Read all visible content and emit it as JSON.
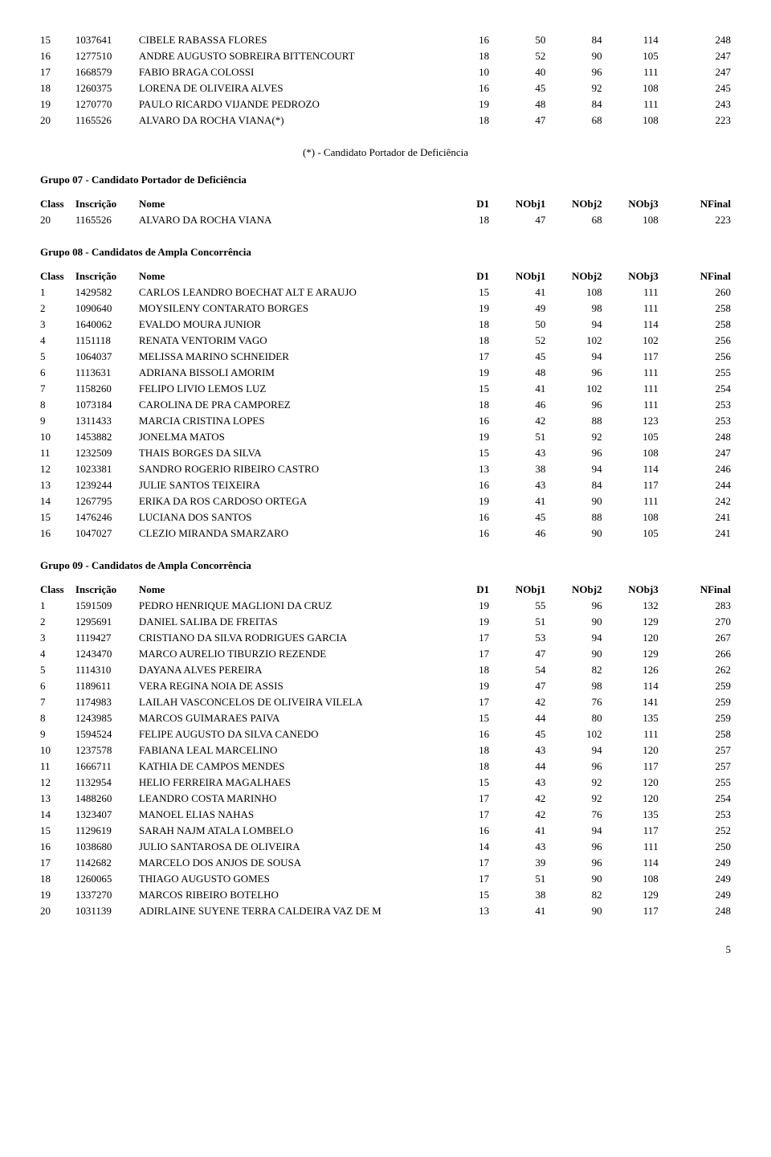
{
  "headers": {
    "class": "Class",
    "inscricao": "Inscrição",
    "nome": "Nome",
    "d1": "D1",
    "nobj1": "NObj1",
    "nobj2": "NObj2",
    "nobj3": "NObj3",
    "nfinal": "NFinal"
  },
  "note": "(*) - Candidato Portador de Deficiência",
  "page_number": "5",
  "top_rows": [
    {
      "c": "15",
      "i": "1037641",
      "n": "CIBELE RABASSA FLORES",
      "d1": "16",
      "o1": "50",
      "o2": "84",
      "o3": "114",
      "f": "248"
    },
    {
      "c": "16",
      "i": "1277510",
      "n": "ANDRE AUGUSTO SOBREIRA BITTENCOURT",
      "d1": "18",
      "o1": "52",
      "o2": "90",
      "o3": "105",
      "f": "247"
    },
    {
      "c": "17",
      "i": "1668579",
      "n": "FABIO BRAGA COLOSSI",
      "d1": "10",
      "o1": "40",
      "o2": "96",
      "o3": "111",
      "f": "247"
    },
    {
      "c": "18",
      "i": "1260375",
      "n": "LORENA DE OLIVEIRA ALVES",
      "d1": "16",
      "o1": "45",
      "o2": "92",
      "o3": "108",
      "f": "245"
    },
    {
      "c": "19",
      "i": "1270770",
      "n": "PAULO RICARDO VIJANDE PEDROZO",
      "d1": "19",
      "o1": "48",
      "o2": "84",
      "o3": "111",
      "f": "243"
    },
    {
      "c": "20",
      "i": "1165526",
      "n": "ALVARO DA ROCHA VIANA(*)",
      "d1": "18",
      "o1": "47",
      "o2": "68",
      "o3": "108",
      "f": "223"
    }
  ],
  "group07": {
    "title": "Grupo 07 - Candidato Portador de Deficiência",
    "rows": [
      {
        "c": "20",
        "i": "1165526",
        "n": "ALVARO DA ROCHA VIANA",
        "d1": "18",
        "o1": "47",
        "o2": "68",
        "o3": "108",
        "f": "223"
      }
    ]
  },
  "group08": {
    "title": "Grupo 08 - Candidatos de Ampla Concorrência",
    "rows": [
      {
        "c": "1",
        "i": "1429582",
        "n": "CARLOS LEANDRO BOECHAT ALT E ARAUJO",
        "d1": "15",
        "o1": "41",
        "o2": "108",
        "o3": "111",
        "f": "260"
      },
      {
        "c": "2",
        "i": "1090640",
        "n": "MOYSILENY CONTARATO BORGES",
        "d1": "19",
        "o1": "49",
        "o2": "98",
        "o3": "111",
        "f": "258"
      },
      {
        "c": "3",
        "i": "1640062",
        "n": "EVALDO MOURA JUNIOR",
        "d1": "18",
        "o1": "50",
        "o2": "94",
        "o3": "114",
        "f": "258"
      },
      {
        "c": "4",
        "i": "1151118",
        "n": "RENATA VENTORIM VAGO",
        "d1": "18",
        "o1": "52",
        "o2": "102",
        "o3": "102",
        "f": "256"
      },
      {
        "c": "5",
        "i": "1064037",
        "n": "MELISSA MARINO SCHNEIDER",
        "d1": "17",
        "o1": "45",
        "o2": "94",
        "o3": "117",
        "f": "256"
      },
      {
        "c": "6",
        "i": "1113631",
        "n": "ADRIANA BISSOLI AMORIM",
        "d1": "19",
        "o1": "48",
        "o2": "96",
        "o3": "111",
        "f": "255"
      },
      {
        "c": "7",
        "i": "1158260",
        "n": "FELIPO LIVIO LEMOS LUZ",
        "d1": "15",
        "o1": "41",
        "o2": "102",
        "o3": "111",
        "f": "254"
      },
      {
        "c": "8",
        "i": "1073184",
        "n": "CAROLINA DE PRA CAMPOREZ",
        "d1": "18",
        "o1": "46",
        "o2": "96",
        "o3": "111",
        "f": "253"
      },
      {
        "c": "9",
        "i": "1311433",
        "n": "MARCIA CRISTINA LOPES",
        "d1": "16",
        "o1": "42",
        "o2": "88",
        "o3": "123",
        "f": "253"
      },
      {
        "c": "10",
        "i": "1453882",
        "n": "JONELMA MATOS",
        "d1": "19",
        "o1": "51",
        "o2": "92",
        "o3": "105",
        "f": "248"
      },
      {
        "c": "11",
        "i": "1232509",
        "n": "THAIS BORGES DA SILVA",
        "d1": "15",
        "o1": "43",
        "o2": "96",
        "o3": "108",
        "f": "247"
      },
      {
        "c": "12",
        "i": "1023381",
        "n": "SANDRO ROGERIO RIBEIRO CASTRO",
        "d1": "13",
        "o1": "38",
        "o2": "94",
        "o3": "114",
        "f": "246"
      },
      {
        "c": "13",
        "i": "1239244",
        "n": "JULIE SANTOS TEIXEIRA",
        "d1": "16",
        "o1": "43",
        "o2": "84",
        "o3": "117",
        "f": "244"
      },
      {
        "c": "14",
        "i": "1267795",
        "n": "ERIKA DA ROS CARDOSO ORTEGA",
        "d1": "19",
        "o1": "41",
        "o2": "90",
        "o3": "111",
        "f": "242"
      },
      {
        "c": "15",
        "i": "1476246",
        "n": "LUCIANA DOS SANTOS",
        "d1": "16",
        "o1": "45",
        "o2": "88",
        "o3": "108",
        "f": "241"
      },
      {
        "c": "16",
        "i": "1047027",
        "n": "CLEZIO MIRANDA SMARZARO",
        "d1": "16",
        "o1": "46",
        "o2": "90",
        "o3": "105",
        "f": "241"
      }
    ]
  },
  "group09": {
    "title": "Grupo 09 - Candidatos de Ampla Concorrência",
    "rows": [
      {
        "c": "1",
        "i": "1591509",
        "n": "PEDRO HENRIQUE MAGLIONI DA CRUZ",
        "d1": "19",
        "o1": "55",
        "o2": "96",
        "o3": "132",
        "f": "283"
      },
      {
        "c": "2",
        "i": "1295691",
        "n": "DANIEL SALIBA DE FREITAS",
        "d1": "19",
        "o1": "51",
        "o2": "90",
        "o3": "129",
        "f": "270"
      },
      {
        "c": "3",
        "i": "1119427",
        "n": "CRISTIANO DA SILVA RODRIGUES GARCIA",
        "d1": "17",
        "o1": "53",
        "o2": "94",
        "o3": "120",
        "f": "267"
      },
      {
        "c": "4",
        "i": "1243470",
        "n": "MARCO AURELIO TIBURZIO REZENDE",
        "d1": "17",
        "o1": "47",
        "o2": "90",
        "o3": "129",
        "f": "266"
      },
      {
        "c": "5",
        "i": "1114310",
        "n": "DAYANA ALVES PEREIRA",
        "d1": "18",
        "o1": "54",
        "o2": "82",
        "o3": "126",
        "f": "262"
      },
      {
        "c": "6",
        "i": "1189611",
        "n": "VERA REGINA NOIA DE ASSIS",
        "d1": "19",
        "o1": "47",
        "o2": "98",
        "o3": "114",
        "f": "259"
      },
      {
        "c": "7",
        "i": "1174983",
        "n": "LAILAH VASCONCELOS DE OLIVEIRA VILELA",
        "d1": "17",
        "o1": "42",
        "o2": "76",
        "o3": "141",
        "f": "259"
      },
      {
        "c": "8",
        "i": "1243985",
        "n": "MARCOS GUIMARAES PAIVA",
        "d1": "15",
        "o1": "44",
        "o2": "80",
        "o3": "135",
        "f": "259"
      },
      {
        "c": "9",
        "i": "1594524",
        "n": "FELIPE AUGUSTO DA SILVA CANEDO",
        "d1": "16",
        "o1": "45",
        "o2": "102",
        "o3": "111",
        "f": "258"
      },
      {
        "c": "10",
        "i": "1237578",
        "n": "FABIANA LEAL MARCELINO",
        "d1": "18",
        "o1": "43",
        "o2": "94",
        "o3": "120",
        "f": "257"
      },
      {
        "c": "11",
        "i": "1666711",
        "n": "KATHIA DE CAMPOS MENDES",
        "d1": "18",
        "o1": "44",
        "o2": "96",
        "o3": "117",
        "f": "257"
      },
      {
        "c": "12",
        "i": "1132954",
        "n": "HELIO FERREIRA MAGALHAES",
        "d1": "15",
        "o1": "43",
        "o2": "92",
        "o3": "120",
        "f": "255"
      },
      {
        "c": "13",
        "i": "1488260",
        "n": "LEANDRO COSTA MARINHO",
        "d1": "17",
        "o1": "42",
        "o2": "92",
        "o3": "120",
        "f": "254"
      },
      {
        "c": "14",
        "i": "1323407",
        "n": "MANOEL ELIAS NAHAS",
        "d1": "17",
        "o1": "42",
        "o2": "76",
        "o3": "135",
        "f": "253"
      },
      {
        "c": "15",
        "i": "1129619",
        "n": "SARAH NAJM ATALA LOMBELO",
        "d1": "16",
        "o1": "41",
        "o2": "94",
        "o3": "117",
        "f": "252"
      },
      {
        "c": "16",
        "i": "1038680",
        "n": "JULIO SANTAROSA DE OLIVEIRA",
        "d1": "14",
        "o1": "43",
        "o2": "96",
        "o3": "111",
        "f": "250"
      },
      {
        "c": "17",
        "i": "1142682",
        "n": "MARCELO DOS ANJOS DE SOUSA",
        "d1": "17",
        "o1": "39",
        "o2": "96",
        "o3": "114",
        "f": "249"
      },
      {
        "c": "18",
        "i": "1260065",
        "n": "THIAGO AUGUSTO GOMES",
        "d1": "17",
        "o1": "51",
        "o2": "90",
        "o3": "108",
        "f": "249"
      },
      {
        "c": "19",
        "i": "1337270",
        "n": "MARCOS RIBEIRO BOTELHO",
        "d1": "15",
        "o1": "38",
        "o2": "82",
        "o3": "129",
        "f": "249"
      },
      {
        "c": "20",
        "i": "1031139",
        "n": "ADIRLAINE SUYENE TERRA CALDEIRA VAZ DE M",
        "d1": "13",
        "o1": "41",
        "o2": "90",
        "o3": "117",
        "f": "248"
      }
    ]
  }
}
